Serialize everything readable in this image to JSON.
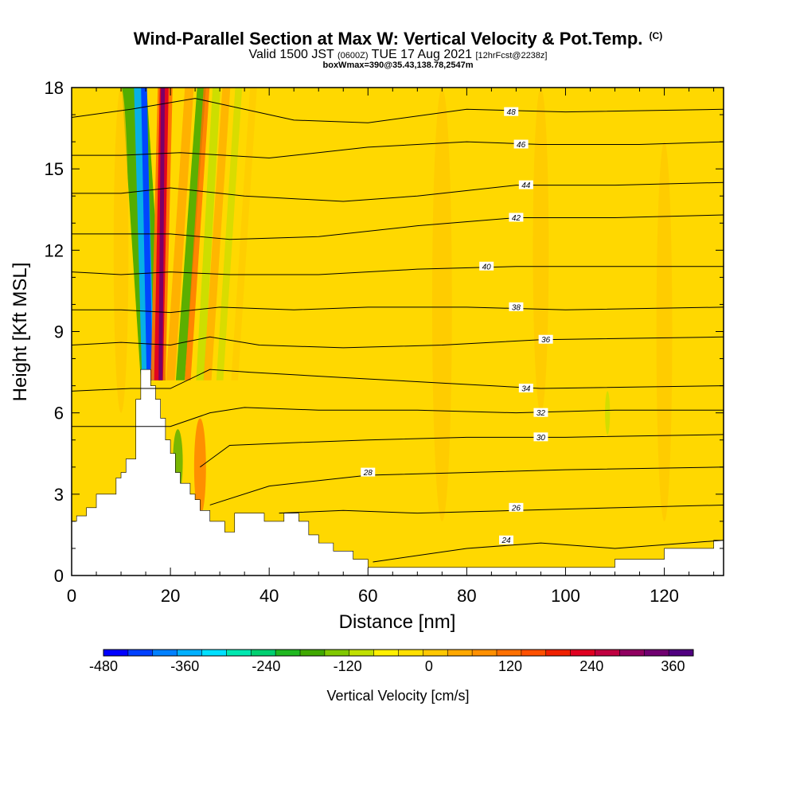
{
  "header": {
    "title": "Wind-Parallel Section at Max W: Vertical Velocity & Pot.Temp.",
    "copyright": "(C)",
    "valid_prefix": "Valid 1500 JST",
    "utc_time": "(0600Z)",
    "valid_date": "TUE 17 Aug 2021",
    "forecast_info": "[12hrFcst@2238z]",
    "box_info": "boxWmax=390@35.43,138.78,2547m"
  },
  "chart_data": {
    "type": "heatmap",
    "xlabel": "Distance [nm]",
    "ylabel": "Height [Kft MSL]",
    "xlim": [
      0,
      132
    ],
    "ylim": [
      0,
      18
    ],
    "x_ticks": [
      0,
      20,
      40,
      60,
      80,
      100,
      120
    ],
    "y_ticks": [
      0,
      3,
      6,
      9,
      12,
      15,
      18
    ],
    "colorbar": {
      "label": "Vertical Velocity [cm/s]",
      "range": [
        -480,
        390
      ],
      "tick_values": [
        -480,
        -360,
        -240,
        -120,
        0,
        120,
        240,
        360
      ],
      "colors": [
        "#0000ff",
        "#0040ff",
        "#0080ff",
        "#00b0ff",
        "#00e0ff",
        "#00e8b0",
        "#00d070",
        "#20b820",
        "#40a800",
        "#80c800",
        "#c0e000",
        "#fff000",
        "#ffe000",
        "#ffc800",
        "#ffa800",
        "#ff9000",
        "#ff7000",
        "#ff5000",
        "#f02000",
        "#e00020",
        "#c00040",
        "#900060",
        "#700070",
        "#500080"
      ]
    },
    "terrain_profile": [
      [
        0,
        2
      ],
      [
        1,
        2
      ],
      [
        1,
        2.2
      ],
      [
        3,
        2.2
      ],
      [
        3,
        2.5
      ],
      [
        5,
        2.5
      ],
      [
        5,
        3
      ],
      [
        9,
        3
      ],
      [
        9,
        3.6
      ],
      [
        10,
        3.6
      ],
      [
        10,
        3.8
      ],
      [
        11,
        3.8
      ],
      [
        11,
        4.3
      ],
      [
        13,
        4.3
      ],
      [
        13,
        6.5
      ],
      [
        14,
        6.5
      ],
      [
        14,
        7.6
      ],
      [
        16,
        7.6
      ],
      [
        16,
        7
      ],
      [
        17,
        7
      ],
      [
        17,
        6.5
      ],
      [
        18,
        6.5
      ],
      [
        18,
        5.8
      ],
      [
        19,
        5.8
      ],
      [
        19,
        5
      ],
      [
        20,
        5
      ],
      [
        20,
        4.5
      ],
      [
        21,
        4.5
      ],
      [
        21,
        3.8
      ],
      [
        22,
        3.8
      ],
      [
        22,
        3.4
      ],
      [
        24,
        3.4
      ],
      [
        24,
        3
      ],
      [
        25,
        3
      ],
      [
        25,
        2.8
      ],
      [
        26,
        2.8
      ],
      [
        26,
        2.4
      ],
      [
        28,
        2.4
      ],
      [
        28,
        2
      ],
      [
        31,
        2
      ],
      [
        31,
        1.6
      ],
      [
        33,
        1.6
      ],
      [
        33,
        2.3
      ],
      [
        39,
        2.3
      ],
      [
        39,
        2
      ],
      [
        43,
        2
      ],
      [
        43,
        2.3
      ],
      [
        46,
        2.3
      ],
      [
        46,
        2
      ],
      [
        48,
        2
      ],
      [
        48,
        1.5
      ],
      [
        50,
        1.5
      ],
      [
        50,
        1.2
      ],
      [
        53,
        1.2
      ],
      [
        53,
        0.9
      ],
      [
        57,
        0.9
      ],
      [
        57,
        0.6
      ],
      [
        60,
        0.6
      ],
      [
        60,
        0.3
      ],
      [
        110,
        0.3
      ],
      [
        110,
        0.6
      ],
      [
        120,
        0.6
      ],
      [
        120,
        1
      ],
      [
        130,
        1
      ],
      [
        130,
        1.3
      ],
      [
        132,
        1.3
      ]
    ],
    "theta_contours": [
      {
        "label": "24",
        "points": [
          [
            61,
            0.5
          ],
          [
            80,
            1
          ],
          [
            95,
            1.2
          ],
          [
            110,
            1
          ],
          [
            132,
            1.3
          ]
        ],
        "label_at": [
          88,
          1.3
        ]
      },
      {
        "label": "26",
        "points": [
          [
            42,
            2.3
          ],
          [
            55,
            2.4
          ],
          [
            70,
            2.3
          ],
          [
            90,
            2.4
          ],
          [
            110,
            2.5
          ],
          [
            132,
            2.6
          ]
        ],
        "label_at": [
          90,
          2.5
        ]
      },
      {
        "label": "28",
        "points": [
          [
            28,
            2.6
          ],
          [
            40,
            3.3
          ],
          [
            60,
            3.7
          ],
          [
            80,
            3.8
          ],
          [
            100,
            3.9
          ],
          [
            132,
            4
          ]
        ],
        "label_at": [
          60,
          3.8
        ]
      },
      {
        "label": "30",
        "points": [
          [
            26,
            4
          ],
          [
            32,
            4.8
          ],
          [
            45,
            4.9
          ],
          [
            60,
            5
          ],
          [
            80,
            5.1
          ],
          [
            100,
            5.1
          ],
          [
            132,
            5.2
          ]
        ],
        "label_at": [
          95,
          5.1
        ]
      },
      {
        "label": "32",
        "points": [
          [
            0,
            5.5
          ],
          [
            12,
            5.5
          ],
          [
            20,
            5.5
          ],
          [
            28,
            6
          ],
          [
            35,
            6.2
          ],
          [
            50,
            6.1
          ],
          [
            70,
            6.1
          ],
          [
            90,
            6
          ],
          [
            110,
            6.1
          ],
          [
            132,
            6.1
          ]
        ],
        "label_at": [
          95,
          6
        ]
      },
      {
        "label": "34",
        "points": [
          [
            0,
            6.8
          ],
          [
            12,
            6.9
          ],
          [
            20,
            6.9
          ],
          [
            28,
            7.6
          ],
          [
            36,
            7.5
          ],
          [
            55,
            7.3
          ],
          [
            75,
            7.1
          ],
          [
            95,
            6.9
          ],
          [
            132,
            7
          ]
        ],
        "label_at": [
          92,
          6.9
        ]
      },
      {
        "label": "36",
        "points": [
          [
            0,
            8.5
          ],
          [
            10,
            8.6
          ],
          [
            20,
            8.5
          ],
          [
            28,
            8.8
          ],
          [
            38,
            8.5
          ],
          [
            55,
            8.4
          ],
          [
            75,
            8.5
          ],
          [
            95,
            8.7
          ],
          [
            132,
            8.8
          ]
        ],
        "label_at": [
          96,
          8.7
        ]
      },
      {
        "label": "38",
        "points": [
          [
            0,
            9.8
          ],
          [
            10,
            9.8
          ],
          [
            20,
            9.7
          ],
          [
            30,
            9.9
          ],
          [
            45,
            9.8
          ],
          [
            60,
            9.9
          ],
          [
            80,
            9.9
          ],
          [
            100,
            9.8
          ],
          [
            132,
            9.9
          ]
        ],
        "label_at": [
          90,
          9.9
        ]
      },
      {
        "label": "40",
        "points": [
          [
            0,
            11.2
          ],
          [
            10,
            11.1
          ],
          [
            20,
            11.2
          ],
          [
            32,
            11.1
          ],
          [
            50,
            11.1
          ],
          [
            70,
            11.3
          ],
          [
            90,
            11.4
          ],
          [
            110,
            11.4
          ],
          [
            132,
            11.4
          ]
        ],
        "label_at": [
          84,
          11.4
        ]
      },
      {
        "label": "42",
        "points": [
          [
            0,
            12.6
          ],
          [
            8,
            12.6
          ],
          [
            20,
            12.6
          ],
          [
            32,
            12.4
          ],
          [
            50,
            12.5
          ],
          [
            70,
            12.9
          ],
          [
            90,
            13.2
          ],
          [
            110,
            13.2
          ],
          [
            132,
            13.3
          ]
        ],
        "label_at": [
          90,
          13.2
        ]
      },
      {
        "label": "44",
        "points": [
          [
            0,
            14.1
          ],
          [
            10,
            14.1
          ],
          [
            20,
            14.3
          ],
          [
            35,
            14
          ],
          [
            55,
            13.8
          ],
          [
            70,
            14
          ],
          [
            90,
            14.4
          ],
          [
            110,
            14.4
          ],
          [
            132,
            14.5
          ]
        ],
        "label_at": [
          92,
          14.4
        ]
      },
      {
        "label": "46",
        "points": [
          [
            0,
            15.5
          ],
          [
            10,
            15.5
          ],
          [
            22,
            15.6
          ],
          [
            40,
            15.4
          ],
          [
            60,
            15.8
          ],
          [
            80,
            16
          ],
          [
            95,
            15.9
          ],
          [
            115,
            15.9
          ],
          [
            132,
            16
          ]
        ],
        "label_at": [
          91,
          15.9
        ]
      },
      {
        "label": "48",
        "points": [
          [
            0,
            16.9
          ],
          [
            12,
            17.2
          ],
          [
            25,
            17.6
          ],
          [
            45,
            16.8
          ],
          [
            60,
            16.7
          ],
          [
            80,
            17.2
          ],
          [
            100,
            17.1
          ],
          [
            132,
            17.2
          ]
        ],
        "label_at": [
          89,
          17.1
        ]
      }
    ]
  }
}
